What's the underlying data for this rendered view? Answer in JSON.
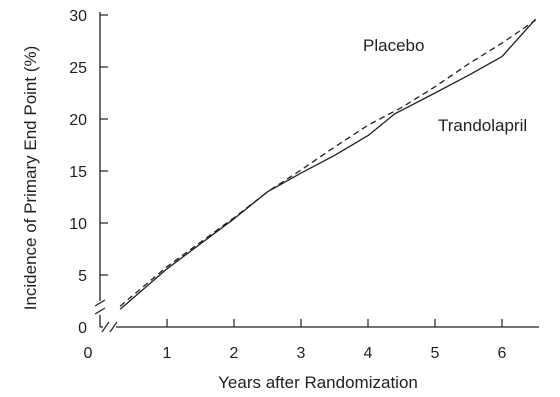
{
  "chart_data": {
    "type": "line",
    "title": "",
    "xlabel": "Years after  Randomization",
    "ylabel": "Incidence of Primary End Point (%)",
    "xlim": [
      0,
      7
    ],
    "ylim": [
      0,
      30
    ],
    "axis_breaks": {
      "x": true,
      "y": true
    },
    "x_ticks": [
      0,
      1,
      2,
      3,
      4,
      5,
      6
    ],
    "y_ticks": [
      0,
      5,
      10,
      15,
      20,
      25,
      30
    ],
    "grid": false,
    "legend": "none",
    "series": [
      {
        "name": "Placebo",
        "style": "dashed",
        "color": "#231f20",
        "x": [
          0.3,
          1,
          2,
          2.5,
          3,
          3.5,
          4,
          4.5,
          5,
          5.5,
          6,
          6.5
        ],
        "y": [
          2.0,
          5.8,
          10.5,
          13.0,
          15.1,
          17.3,
          19.4,
          21.1,
          23.1,
          25.3,
          27.3,
          29.5
        ]
      },
      {
        "name": "Trandolapril",
        "style": "solid",
        "color": "#231f20",
        "x": [
          0.3,
          1,
          2,
          2.5,
          3,
          3.5,
          4,
          4.4,
          5,
          5.5,
          6,
          6.5
        ],
        "y": [
          1.7,
          5.6,
          10.4,
          13.0,
          14.8,
          16.5,
          18.4,
          20.5,
          22.5,
          24.2,
          26.0,
          29.6
        ]
      }
    ]
  }
}
